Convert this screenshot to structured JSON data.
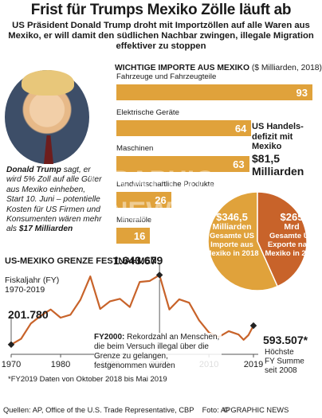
{
  "title": "Frist für Trumps Mexiko Zölle läuft ab",
  "subtitle": "US Präsident Donald Trump droht mit Importzöllen auf alle Waren aus Mexiko, er will damit den südlichen Nachbar zwingen, illegale Migration effektiver zu stoppen",
  "trump_name": "Donald Trump",
  "trump_text_1": " sagt, er wird 5% Zoll auf alle Güter aus Mexiko einheben, Start 10. Juni – potentielle Kosten für US Firmen und Konsumenten wären mehr als ",
  "trump_text_2": "$17 Milliarden",
  "imports_title": "WICHTIGE IMPORTE AUS MEXIKO",
  "imports_unit": " ($ Milliarden, 2018)",
  "watermark": "GRAPHIC NEWS",
  "deficit_head": "US Handels-defizit mit Mexiko",
  "deficit_value": "$81,5 Milliarden",
  "pie": {
    "import_amount": "$346,5",
    "import_unit": "Milliarden",
    "import_label": "Gesamte US Importe aus Mexiko in 2018",
    "export_amount": "$265",
    "export_unit": "Mrd",
    "export_label": "Gesamte US Exporte nach Mexiko in 2018",
    "colors": {
      "imports": "#e0a23b",
      "exports": "#c8632a"
    }
  },
  "border": {
    "title": "US-MEXIKO GRENZE FESTNAHMEN",
    "sub1": "Fiskaljahr (FY)",
    "sub2": "1970-2019",
    "val_1970": "201.780",
    "val_peak": "1.643.679",
    "val_2019": "593.507*",
    "note_2019": "Höchste FY Summe seit 2008",
    "fy2000_head": "FY2000:",
    "fy2000_text": " Rekordzahl an Menschen, die beim Versuch illegal über die Grenze zu gelangen, festgenommen wurden",
    "footnote": "*FY2019 Daten von Oktober 2018 bis Mai 2019"
  },
  "chart_data": [
    {
      "type": "bar",
      "title": "WICHTIGE IMPORTE AUS MEXIKO",
      "ylabel": "$ Milliarden, 2018",
      "categories": [
        "Fahrzeuge und Fahrzeugteile",
        "Elektrische Geräte",
        "Maschinen",
        "Landwirtschaftliche Produkte",
        "Mineralöle"
      ],
      "values": [
        93,
        64,
        63,
        26,
        16
      ],
      "ylim": [
        0,
        93
      ],
      "color": "#e0a23b"
    },
    {
      "type": "pie",
      "categories": [
        "Gesamte US Importe aus Mexiko in 2018",
        "Gesamte US Exporte nach Mexiko in 2018"
      ],
      "values": [
        346.5,
        265
      ]
    },
    {
      "type": "line",
      "title": "US-MEXIKO GRENZE FESTNAHMEN",
      "xlim": [
        1970,
        2019
      ],
      "ylim": [
        0,
        1700000
      ],
      "x_ticks": [
        "1970",
        "1980",
        "1990",
        "2000",
        "2010",
        "2019"
      ],
      "x": [
        1970,
        1972,
        1974,
        1976,
        1978,
        1980,
        1982,
        1984,
        1986,
        1988,
        1990,
        1992,
        1994,
        1996,
        1998,
        2000,
        2002,
        2004,
        2006,
        2008,
        2010,
        2012,
        2014,
        2016,
        2017,
        2018,
        2019
      ],
      "y": [
        201780,
        320000,
        640000,
        800000,
        930000,
        760000,
        820000,
        1130000,
        1615000,
        940000,
        1100000,
        1150000,
        980000,
        1500000,
        1520000,
        1643679,
        930000,
        1140000,
        1070000,
        705000,
        450000,
        360000,
        480000,
        410000,
        300000,
        400000,
        593507
      ],
      "color": "#c8632a"
    }
  ]
}
